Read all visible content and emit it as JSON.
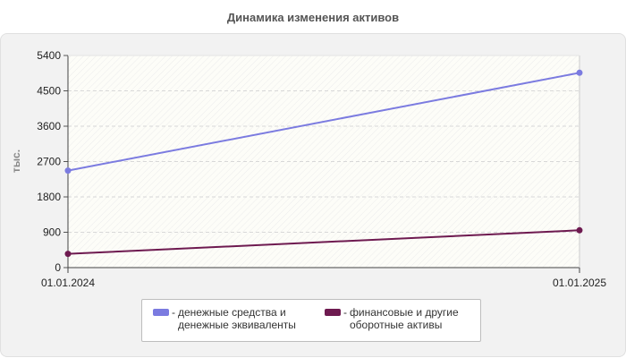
{
  "chart_data": {
    "type": "line",
    "title": "Динамика изменения активов",
    "ylabel": "тыс.",
    "xlabel": "",
    "x": [
      "01.01.2024",
      "01.01.2025"
    ],
    "ylim": [
      0,
      5400
    ],
    "yticks": [
      "0",
      "900",
      "1800",
      "2700",
      "3600",
      "4500",
      "5400"
    ],
    "grid": true,
    "legend_position": "bottom",
    "series": [
      {
        "name": "денежные средства и\nденежные эквиваленты",
        "values": [
          2470,
          4960
        ],
        "color": "#7b7be0"
      },
      {
        "name": "финансовые и другие\nоборотные активы",
        "values": [
          350,
          950
        ],
        "color": "#6e1a50"
      }
    ]
  }
}
